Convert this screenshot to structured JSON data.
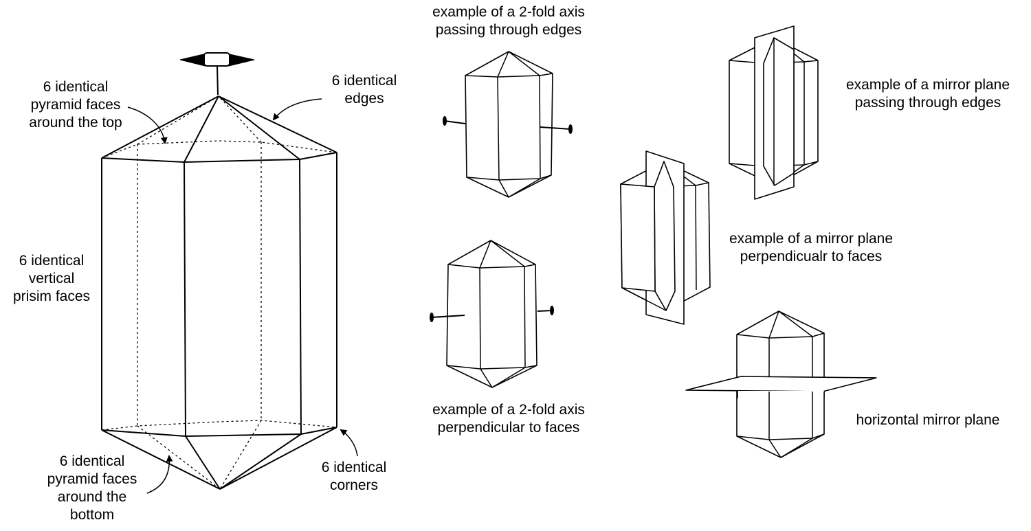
{
  "labels": {
    "top_faces": [
      "6 identical",
      "pyramid faces",
      "around the top"
    ],
    "edges": [
      "6 identical",
      "edges"
    ],
    "prism_faces": [
      "6 identical",
      "vertical",
      "prisim faces"
    ],
    "bottom_faces": [
      "6 identical",
      "pyramid faces",
      "around the",
      "bottom"
    ],
    "corners": [
      "6 identical",
      "corners"
    ],
    "twofold_edges": [
      "example of a 2-fold axis",
      "passing through edges"
    ],
    "twofold_faces": [
      "example of a 2-fold axis",
      "perpendicular to faces"
    ],
    "mirror_edges": [
      "example of a mirror plane",
      "passing through edges"
    ],
    "mirror_faces": [
      "example of a mirror plane",
      "perpendicualr to faces"
    ],
    "mirror_horizontal": [
      "horizontal mirror plane"
    ]
  }
}
